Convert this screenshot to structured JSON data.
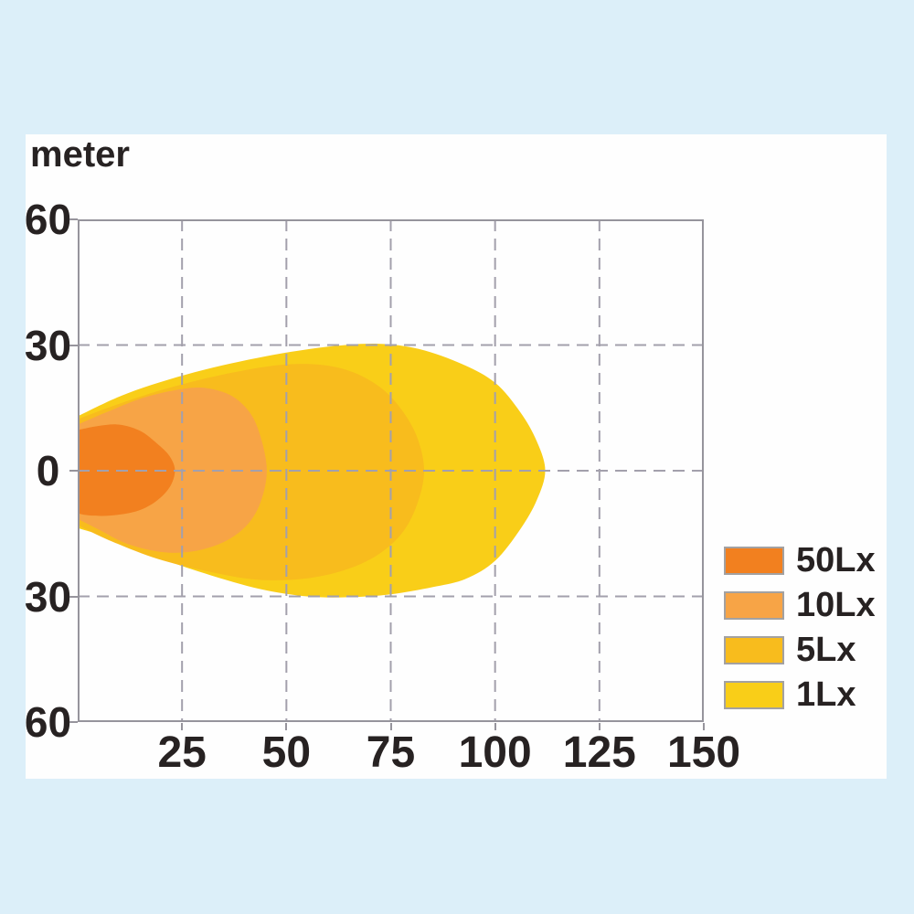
{
  "colors": {
    "background": "#DCEFF9",
    "card": "#FEFEFE",
    "grid_dash": "#A3A0AC",
    "frame": "#96949C",
    "text": "#272222"
  },
  "chart_data": {
    "type": "area",
    "ylabel": "meter",
    "xlabel": "",
    "xlim": [
      0,
      150
    ],
    "ylim": [
      -60,
      60
    ],
    "grid": "dashed",
    "legend_position": "right-bottom",
    "x_ticks": [
      {
        "label": "25",
        "value": 25
      },
      {
        "label": "50",
        "value": 50
      },
      {
        "label": "75",
        "value": 75
      },
      {
        "label": "100",
        "value": 100
      },
      {
        "label": "125",
        "value": 125
      },
      {
        "label": "150",
        "value": 150
      }
    ],
    "y_ticks": [
      {
        "label": "60",
        "value": 60
      },
      {
        "label": "30",
        "value": 30
      },
      {
        "label": "0",
        "value": 0
      },
      {
        "label": "30",
        "value": -30
      },
      {
        "label": "60",
        "value": -60
      }
    ],
    "x_grid": [
      25,
      50,
      75,
      100,
      125
    ],
    "y_grid": [
      30,
      0,
      -30
    ],
    "series": [
      {
        "name": "50Lx",
        "color": "#F2801F",
        "max_reach_m": 23.3,
        "max_halfwidth_m": 11,
        "contour": [
          [
            0,
            9.7
          ],
          [
            5,
            10.7
          ],
          [
            10,
            11
          ],
          [
            15,
            9.5
          ],
          [
            19,
            6.5
          ],
          [
            22,
            3.5
          ],
          [
            23.3,
            0
          ],
          [
            22,
            -4
          ],
          [
            18.5,
            -7.5
          ],
          [
            14,
            -9.7
          ],
          [
            8,
            -10.7
          ],
          [
            3,
            -10.7
          ],
          [
            0,
            -10.2
          ]
        ]
      },
      {
        "name": "10Lx",
        "color": "#F7A446",
        "max_reach_m": 45.3,
        "max_halfwidth_m": 19.7,
        "contour": [
          [
            0,
            11
          ],
          [
            7,
            14
          ],
          [
            16,
            17.5
          ],
          [
            25,
            19.5
          ],
          [
            31,
            19.7
          ],
          [
            37,
            17.8
          ],
          [
            41.5,
            13.5
          ],
          [
            44,
            7.5
          ],
          [
            45.3,
            0
          ],
          [
            44,
            -7
          ],
          [
            41,
            -12.5
          ],
          [
            36,
            -16.5
          ],
          [
            29,
            -19
          ],
          [
            21,
            -19.5
          ],
          [
            12,
            -17.5
          ],
          [
            5,
            -14
          ],
          [
            0,
            -11.5
          ]
        ]
      },
      {
        "name": "5Lx",
        "color": "#F8BC1D",
        "max_reach_m": 83,
        "max_halfwidth_m": 26,
        "contour": [
          [
            0,
            12.3
          ],
          [
            10,
            16
          ],
          [
            22,
            19.8
          ],
          [
            35,
            23
          ],
          [
            48,
            25.2
          ],
          [
            58,
            25.3
          ],
          [
            66,
            23.5
          ],
          [
            73,
            19.5
          ],
          [
            78,
            14
          ],
          [
            81.5,
            7.5
          ],
          [
            83,
            0
          ],
          [
            81.5,
            -7.5
          ],
          [
            78,
            -14.5
          ],
          [
            72,
            -20
          ],
          [
            64,
            -23.7
          ],
          [
            54,
            -25.8
          ],
          [
            43,
            -26
          ],
          [
            31,
            -24
          ],
          [
            19,
            -21
          ],
          [
            8,
            -16.8
          ],
          [
            0,
            -13
          ]
        ]
      },
      {
        "name": "1Lx",
        "color": "#F9CE18",
        "max_reach_m": 112,
        "max_halfwidth_m": 30.3,
        "contour": [
          [
            0,
            13
          ],
          [
            12,
            18.5
          ],
          [
            28,
            23.5
          ],
          [
            45,
            27.3
          ],
          [
            60,
            29.6
          ],
          [
            72,
            30.3
          ],
          [
            82,
            29
          ],
          [
            92,
            25.5
          ],
          [
            100,
            21
          ],
          [
            106,
            14
          ],
          [
            110,
            7
          ],
          [
            112,
            0
          ],
          [
            110,
            -7
          ],
          [
            106,
            -14
          ],
          [
            100,
            -21.5
          ],
          [
            93,
            -25.8
          ],
          [
            85,
            -27.8
          ],
          [
            75,
            -29.5
          ],
          [
            65,
            -30.2
          ],
          [
            55,
            -30
          ],
          [
            44,
            -28.3
          ],
          [
            32,
            -25
          ],
          [
            20,
            -21
          ],
          [
            9,
            -16.5
          ],
          [
            0,
            -13.7
          ]
        ]
      }
    ]
  }
}
